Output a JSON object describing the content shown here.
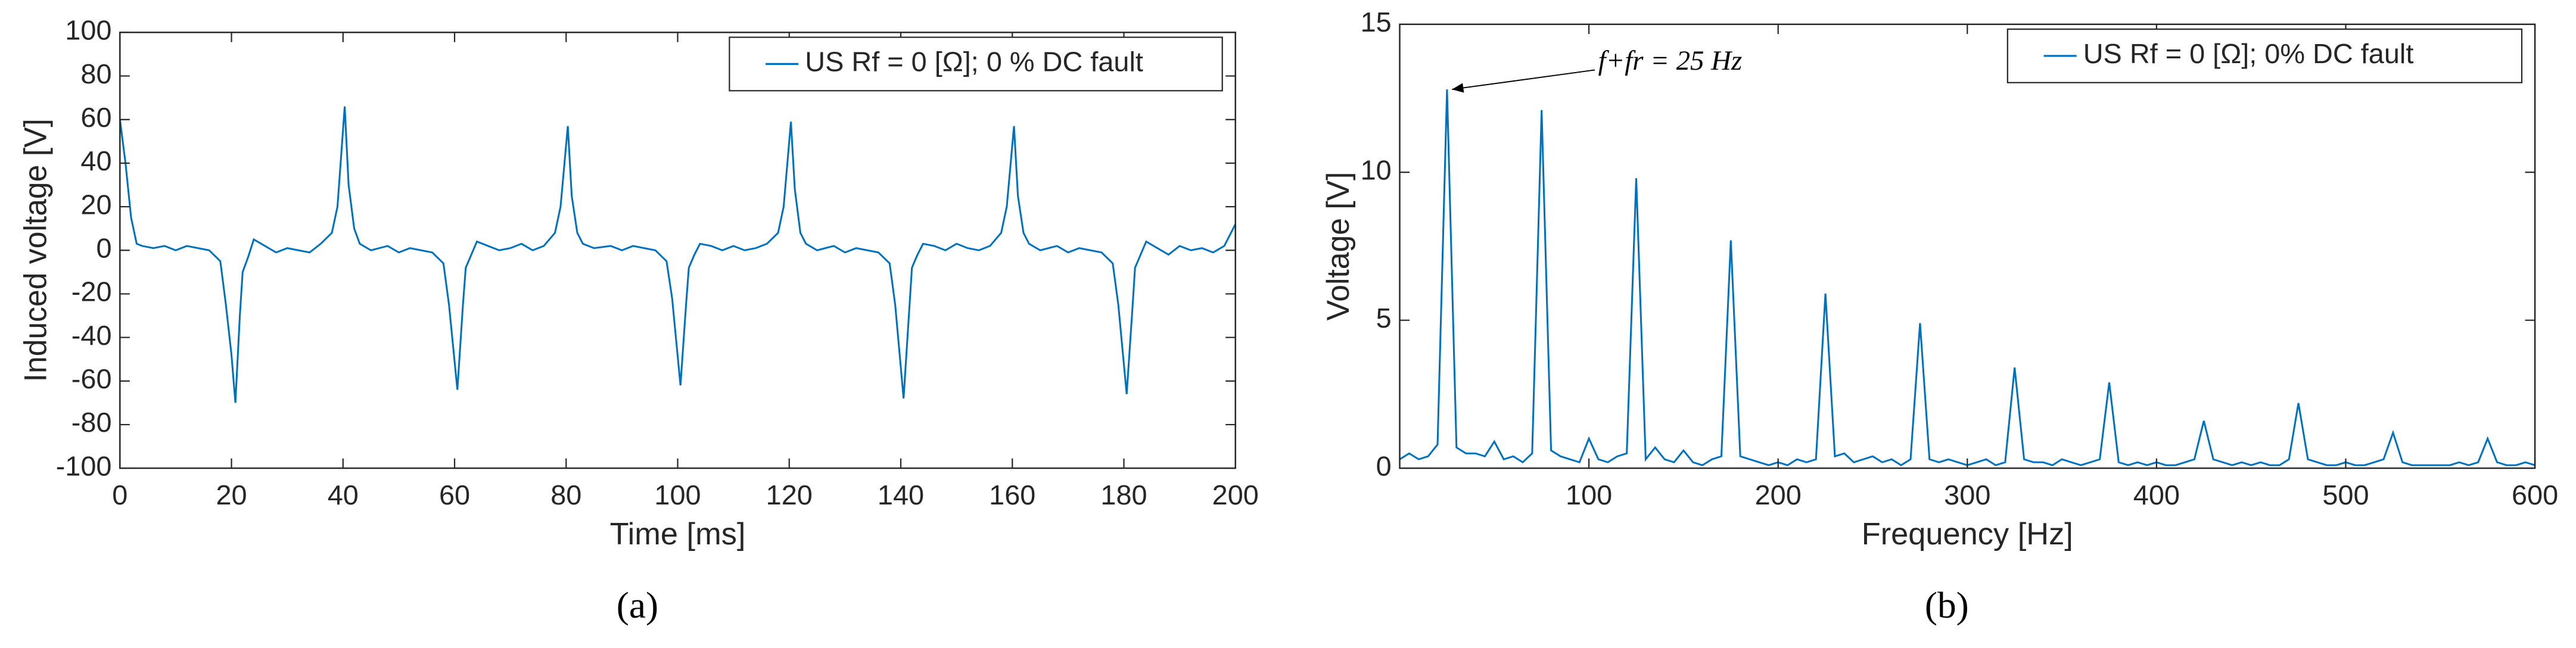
{
  "chart_data": [
    {
      "type": "line",
      "caption": "(a)",
      "x_label": "Time [ms]",
      "y_label": "Induced voltage [V]",
      "xlim": [
        0,
        200
      ],
      "xticks": [
        0,
        20,
        40,
        60,
        80,
        100,
        120,
        140,
        160,
        180,
        200
      ],
      "ylim": [
        -100,
        100
      ],
      "yticks": [
        -100,
        -80,
        -60,
        -40,
        -20,
        0,
        20,
        40,
        60,
        80,
        100
      ],
      "grid": false,
      "legend": "upper right",
      "x": [
        0,
        1,
        2,
        3,
        4,
        6,
        8,
        10,
        12,
        14,
        16,
        18,
        19,
        20,
        20.7,
        21.5,
        22,
        23,
        24,
        26,
        28,
        30,
        32,
        34,
        36,
        38,
        39,
        40.3,
        41,
        42,
        43,
        45,
        48,
        50,
        52,
        54,
        56,
        58,
        59,
        60.5,
        61.5,
        62,
        63,
        64,
        66,
        68,
        70,
        72,
        74,
        76,
        78,
        79,
        80.3,
        81,
        82,
        83,
        85,
        88,
        90,
        92,
        94,
        96,
        98,
        99,
        100.5,
        101.5,
        102,
        103,
        104,
        106,
        108,
        110,
        112,
        114,
        116,
        118,
        119,
        120.3,
        121,
        122,
        123,
        125,
        128,
        130,
        132,
        134,
        136,
        138,
        139,
        140.5,
        141.5,
        142,
        143,
        144,
        146,
        148,
        150,
        152,
        154,
        156,
        158,
        159,
        160.3,
        161,
        162,
        163,
        165,
        168,
        170,
        172,
        174,
        176,
        178,
        179,
        180.5,
        181.5,
        182,
        183,
        184,
        186,
        188,
        190,
        192,
        194,
        196,
        198,
        200
      ],
      "series": [
        {
          "name": "US Rf = 0 [Ω]; 0 % DC fault",
          "color": "#0072bd",
          "values": [
            60,
            40,
            15,
            3,
            2,
            1,
            2,
            0,
            2,
            1,
            0,
            -5,
            -25,
            -48,
            -70,
            -30,
            -10,
            -3,
            5,
            2,
            -1,
            1,
            0,
            -1,
            3,
            8,
            20,
            66,
            30,
            10,
            3,
            0,
            2,
            -1,
            1,
            0,
            -1,
            -6,
            -25,
            -64,
            -25,
            -8,
            -2,
            4,
            2,
            0,
            1,
            3,
            0,
            2,
            8,
            20,
            57,
            25,
            8,
            3,
            1,
            2,
            0,
            2,
            1,
            0,
            -5,
            -22,
            -62,
            -25,
            -8,
            -2,
            3,
            2,
            0,
            2,
            0,
            1,
            3,
            8,
            20,
            59,
            28,
            8,
            3,
            0,
            2,
            -1,
            1,
            0,
            -1,
            -6,
            -25,
            -68,
            -28,
            -8,
            -2,
            3,
            2,
            0,
            3,
            1,
            0,
            2,
            8,
            20,
            57,
            25,
            8,
            3,
            0,
            2,
            -1,
            1,
            0,
            -1,
            -6,
            -25,
            -66,
            -28,
            -8,
            -2,
            4,
            1,
            -2,
            2,
            0,
            1,
            -1,
            2,
            12
          ]
        }
      ]
    },
    {
      "type": "line",
      "caption": "(b)",
      "x_label": "Frequency [Hz]",
      "y_label": "Voltage [V]",
      "xlim": [
        0,
        600
      ],
      "xticks": [
        100,
        200,
        300,
        400,
        500,
        600
      ],
      "ylim": [
        0,
        15
      ],
      "yticks": [
        0,
        5,
        10,
        15
      ],
      "grid": false,
      "legend": "upper right",
      "annotation": {
        "text": "f+fr = 25 Hz",
        "x": 25,
        "y": 12.8
      },
      "x": [
        0,
        5,
        10,
        15,
        20,
        25,
        30,
        35,
        40,
        45,
        50,
        55,
        60,
        65,
        70,
        75,
        80,
        85,
        90,
        95,
        100,
        105,
        110,
        115,
        120,
        125,
        130,
        135,
        140,
        145,
        150,
        155,
        160,
        165,
        170,
        175,
        180,
        185,
        190,
        195,
        200,
        205,
        210,
        215,
        220,
        225,
        230,
        235,
        240,
        245,
        250,
        255,
        260,
        265,
        270,
        275,
        280,
        285,
        290,
        295,
        300,
        305,
        310,
        315,
        320,
        325,
        330,
        335,
        340,
        345,
        350,
        355,
        360,
        365,
        370,
        375,
        380,
        385,
        390,
        395,
        400,
        405,
        410,
        415,
        420,
        425,
        430,
        435,
        440,
        445,
        450,
        455,
        460,
        465,
        470,
        475,
        480,
        485,
        490,
        495,
        500,
        505,
        510,
        515,
        520,
        525,
        530,
        535,
        540,
        545,
        550,
        555,
        560,
        565,
        570,
        575,
        580,
        585,
        590,
        595,
        600
      ],
      "series": [
        {
          "name": "US Rf = 0 [Ω]; 0% DC fault",
          "color": "#0072bd",
          "values": [
            0.3,
            0.5,
            0.3,
            0.4,
            0.8,
            12.8,
            0.7,
            0.5,
            0.5,
            0.4,
            0.9,
            0.3,
            0.4,
            0.2,
            0.5,
            12.1,
            0.6,
            0.4,
            0.3,
            0.2,
            1.0,
            0.3,
            0.2,
            0.4,
            0.5,
            9.8,
            0.3,
            0.7,
            0.3,
            0.2,
            0.6,
            0.2,
            0.1,
            0.3,
            0.4,
            7.7,
            0.4,
            0.3,
            0.2,
            0.1,
            0.2,
            0.1,
            0.3,
            0.2,
            0.3,
            5.9,
            0.4,
            0.5,
            0.2,
            0.3,
            0.4,
            0.2,
            0.3,
            0.1,
            0.3,
            4.9,
            0.3,
            0.2,
            0.3,
            0.2,
            0.1,
            0.2,
            0.3,
            0.1,
            0.2,
            3.4,
            0.3,
            0.2,
            0.2,
            0.1,
            0.3,
            0.2,
            0.1,
            0.2,
            0.3,
            2.9,
            0.2,
            0.1,
            0.2,
            0.1,
            0.2,
            0.1,
            0.1,
            0.2,
            0.3,
            1.6,
            0.3,
            0.2,
            0.1,
            0.2,
            0.1,
            0.2,
            0.1,
            0.1,
            0.3,
            2.2,
            0.3,
            0.2,
            0.1,
            0.1,
            0.2,
            0.1,
            0.1,
            0.2,
            0.3,
            1.2,
            0.2,
            0.1,
            0.1,
            0.1,
            0.1,
            0.1,
            0.2,
            0.1,
            0.2,
            1.0,
            0.2,
            0.1,
            0.1,
            0.2,
            0.1
          ]
        }
      ]
    }
  ]
}
